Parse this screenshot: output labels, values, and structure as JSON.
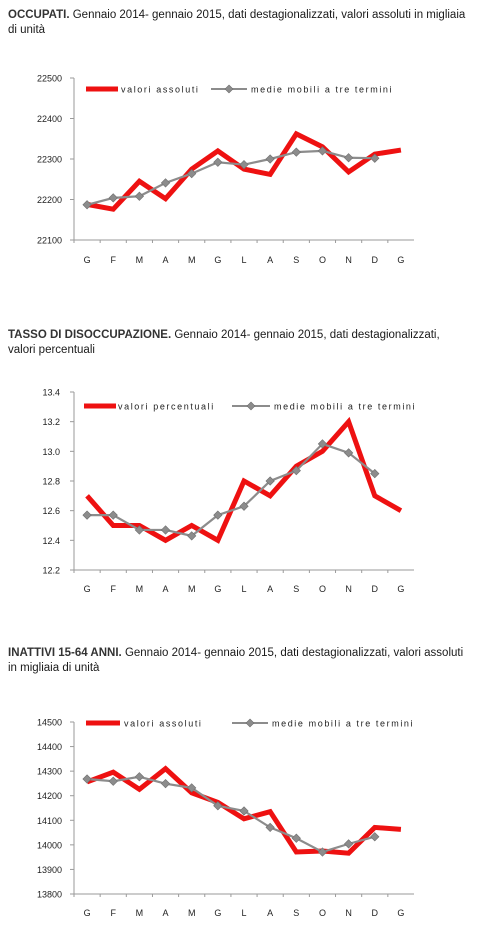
{
  "colors": {
    "series_main": "#ee1111",
    "series_avg": "#8c8c8c",
    "axis": "#9a9a9a",
    "text": "#222222"
  },
  "chart_data": [
    {
      "type": "line",
      "title_bold": "OCCUPATI.",
      "title_rest": " Gennaio 2014- gennaio 2015, dati destagionalizzati, valori assoluti in migliaia di unità",
      "categories": [
        "G",
        "F",
        "M",
        "A",
        "M",
        "G",
        "L",
        "A",
        "S",
        "O",
        "N",
        "D",
        "G"
      ],
      "ylim": [
        22100,
        22500
      ],
      "yticks": [
        "22100",
        "22200",
        "22300",
        "22400",
        "22500"
      ],
      "series": [
        {
          "name": "valori assoluti",
          "values": [
            22188,
            22176,
            22245,
            22202,
            22275,
            22320,
            22275,
            22262,
            22362,
            22330,
            22268,
            22312,
            22322
          ]
        },
        {
          "name": "medie mobili a tre termini",
          "values": [
            22187,
            22204,
            22208,
            22241,
            22264,
            22292,
            22286,
            22300,
            22317,
            22320,
            22303,
            22302,
            null
          ]
        }
      ]
    },
    {
      "type": "line",
      "title_bold": "TASSO DI DISOCCUPAZIONE.",
      "title_rest": " Gennaio 2014- gennaio 2015, dati destagionalizzati, valori percentuali",
      "categories": [
        "G",
        "F",
        "M",
        "A",
        "M",
        "G",
        "L",
        "A",
        "S",
        "O",
        "N",
        "D",
        "G"
      ],
      "ylim": [
        12.2,
        13.4
      ],
      "yticks": [
        "12.2",
        "12.4",
        "12.6",
        "12.8",
        "13.0",
        "13.2",
        "13.4"
      ],
      "series": [
        {
          "name": "valori percentuali",
          "values": [
            12.7,
            12.5,
            12.5,
            12.4,
            12.5,
            12.4,
            12.8,
            12.7,
            12.9,
            13.0,
            13.2,
            12.7,
            12.6
          ]
        },
        {
          "name": "medie mobili a tre termini",
          "values": [
            12.57,
            12.57,
            12.47,
            12.47,
            12.43,
            12.57,
            12.63,
            12.8,
            12.87,
            13.05,
            12.99,
            12.85,
            null
          ]
        }
      ]
    },
    {
      "type": "line",
      "title_bold": "INATTIVI 15-64 ANNI.",
      "title_rest": " Gennaio 2014- gennaio 2015, dati destagionalizzati, valori assoluti in migliaia di unità",
      "categories": [
        "G",
        "F",
        "M",
        "A",
        "M",
        "G",
        "L",
        "A",
        "S",
        "O",
        "N",
        "D",
        "G"
      ],
      "ylim": [
        13800,
        14500
      ],
      "yticks": [
        "13800",
        "13900",
        "14000",
        "14100",
        "14200",
        "14300",
        "14400",
        "14500"
      ],
      "series": [
        {
          "name": "valori assoluti",
          "values": [
            14256,
            14296,
            14226,
            14310,
            14212,
            14173,
            14106,
            14135,
            13971,
            13975,
            13966,
            14071,
            14063
          ]
        },
        {
          "name": "medie mobili a tre termini",
          "values": [
            14268,
            14259,
            14277,
            14249,
            14232,
            14159,
            14138,
            14071,
            14027,
            13971,
            14004,
            14033,
            null
          ]
        }
      ]
    }
  ]
}
